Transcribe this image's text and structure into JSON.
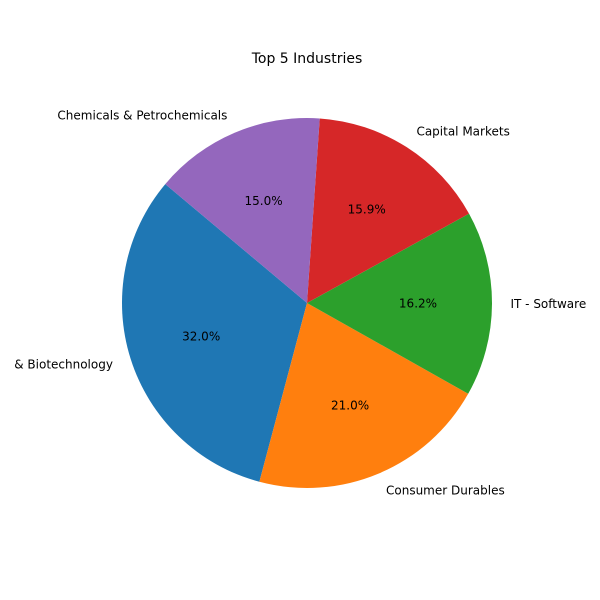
{
  "chart_data": {
    "type": "pie",
    "title": "Top 5 Industries",
    "start_angle": 140,
    "direction": "counterclockwise",
    "slices": [
      {
        "label": "& Biotechnology",
        "value": 32.0,
        "pct_label": "32.0%",
        "color": "#1f77b4"
      },
      {
        "label": "Consumer Durables",
        "value": 21.0,
        "pct_label": "21.0%",
        "color": "#ff7f0e"
      },
      {
        "label": "IT - Software",
        "value": 16.2,
        "pct_label": "16.2%",
        "color": "#2ca02c"
      },
      {
        "label": "Capital Markets",
        "value": 15.9,
        "pct_label": "15.9%",
        "color": "#d62728"
      },
      {
        "label": "Chemicals & Petrochemicals",
        "value": 15.0,
        "pct_label": "15.0%",
        "color": "#9467bd"
      }
    ]
  }
}
